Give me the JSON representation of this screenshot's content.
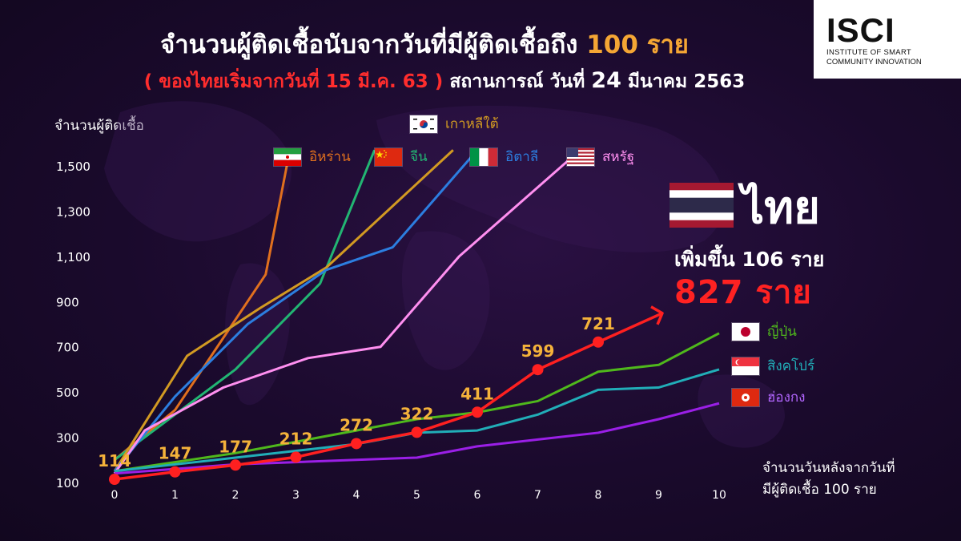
{
  "header": {
    "title_main": "จำนวนผู้ติดเชื้อนับจากวันที่มีผู้ติดเชื้อถึง",
    "title_highlight": "100 ราย",
    "subtitle_red": "( ของไทยเริ่มจากวันที่ 15 มี.ค. 63 )",
    "subtitle_text": "สถานการณ์ วันที่",
    "subtitle_day": "24",
    "subtitle_month_year": "มีนาคม 2563"
  },
  "logo": {
    "text": "ISCI",
    "line1": "INSTITUTE OF SMART",
    "line2": "COMMUNITY INNOVATION"
  },
  "thailand": {
    "name": "ไทย",
    "increase": "เพิ่มขึ้น 106 ราย",
    "total": "827 ราย"
  },
  "colors": {
    "thailand": "#ff2020",
    "label": "#f4b23a",
    "grid": "#ffffff"
  },
  "chart_data": {
    "type": "line",
    "ylabel": "จำนวนผู้ติดเชื้อ",
    "xlabel_line1": "จำนวนวันหลังจากวันที่",
    "xlabel_line2": "มีผู้ติดเชื้อ 100 ราย",
    "x_ticks": [
      "0",
      "1",
      "2",
      "3",
      "4",
      "5",
      "6",
      "7",
      "8",
      "9",
      "10"
    ],
    "y_ticks": [
      "100",
      "300",
      "500",
      "700",
      "900",
      "1,100",
      "1,300",
      "1,500"
    ],
    "xlim": [
      0,
      10
    ],
    "ylim": [
      100,
      1500
    ],
    "series": [
      {
        "name": "อิหร่าน",
        "color": "#e0701e",
        "flag": "iran",
        "x": [
          0,
          1,
          2,
          2.5,
          2.9
        ],
        "y": [
          200,
          420,
          820,
          1020,
          1570
        ]
      },
      {
        "name": "จีน",
        "color": "#22b573",
        "flag": "china",
        "x": [
          0,
          1,
          2,
          3.4,
          4.3
        ],
        "y": [
          200,
          400,
          600,
          980,
          1570
        ]
      },
      {
        "name": "เกาหลีใต้",
        "color": "#d29a22",
        "flag": "korea",
        "x": [
          0,
          1.2,
          2.4,
          3.5,
          5.6
        ],
        "y": [
          150,
          660,
          870,
          1050,
          1570
        ]
      },
      {
        "name": "อิตาลี",
        "color": "#2c7ee0",
        "flag": "italy",
        "x": [
          0,
          1,
          2.2,
          3.5,
          4.6,
          6.0
        ],
        "y": [
          150,
          480,
          800,
          1040,
          1140,
          1570
        ]
      },
      {
        "name": "สหรัฐ",
        "color": "#ff8ff0",
        "flag": "usa",
        "x": [
          0,
          0.5,
          1.8,
          3.2,
          4.4,
          5.7,
          7.7
        ],
        "y": [
          140,
          330,
          520,
          650,
          700,
          1100,
          1570
        ]
      },
      {
        "name": "ญี่ปุ่น",
        "color": "#4fb81c",
        "flag": "japan",
        "x": [
          0,
          1,
          2,
          3,
          4,
          5,
          6,
          7,
          8,
          9,
          10
        ],
        "y": [
          150,
          190,
          230,
          280,
          330,
          380,
          410,
          460,
          590,
          620,
          760
        ]
      },
      {
        "name": "สิงคโปร์",
        "color": "#21aeb8",
        "flag": "singapore",
        "x": [
          0,
          1,
          2,
          3,
          4,
          5,
          6,
          7,
          8,
          9,
          10
        ],
        "y": [
          150,
          180,
          210,
          240,
          270,
          320,
          330,
          400,
          510,
          520,
          600
        ]
      },
      {
        "name": "ฮ่องกง",
        "color": "#9a1fe6",
        "flag": "hongkong",
        "x": [
          0,
          1,
          2,
          3,
          4,
          5,
          6,
          7,
          8,
          9,
          10
        ],
        "y": [
          140,
          160,
          180,
          190,
          200,
          210,
          260,
          290,
          320,
          380,
          450
        ]
      },
      {
        "name": "ไทย",
        "color": "#ff2020",
        "flag": "thailand",
        "x": [
          0,
          1,
          2,
          3,
          4,
          5,
          6,
          7,
          8
        ],
        "y": [
          114,
          147,
          177,
          212,
          272,
          322,
          411,
          599,
          721
        ],
        "labels": [
          "114",
          "147",
          "177",
          "212",
          "272",
          "322",
          "411",
          "599",
          "721"
        ]
      }
    ]
  }
}
